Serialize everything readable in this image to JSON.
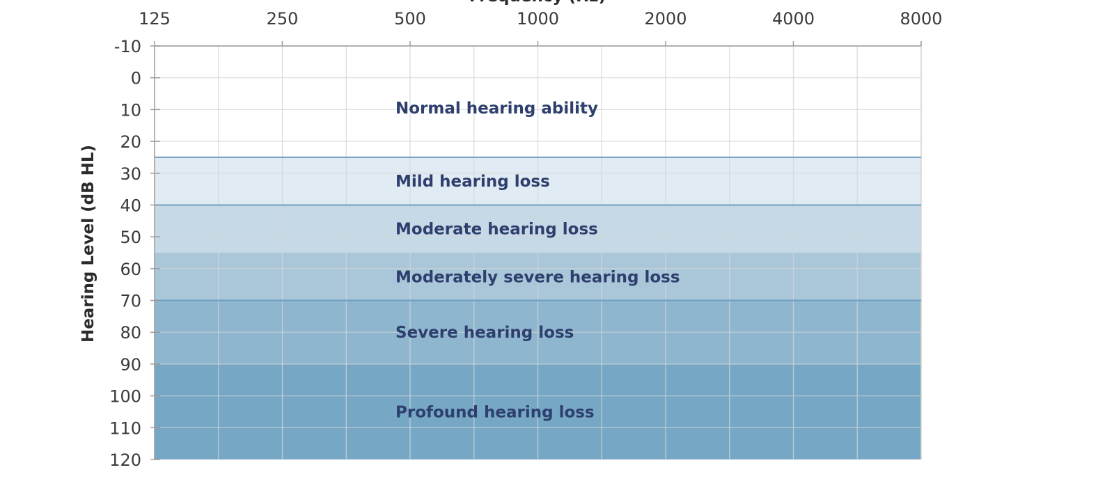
{
  "chart_data": {
    "type": "area",
    "title": "Frequency (Hz)",
    "xlabel": "Frequency (Hz)",
    "ylabel": "Hearing Level (dB HL)",
    "x_scale": "log2",
    "x_ticks": [
      125,
      250,
      500,
      1000,
      2000,
      4000,
      8000
    ],
    "x_tick_labels": [
      "125",
      "250",
      "500",
      "1000",
      "2000",
      "4000",
      "8000"
    ],
    "x_axis_position": "top",
    "xlim": [
      125,
      8000
    ],
    "ylim": [
      -10,
      120
    ],
    "y_inverted": true,
    "y_ticks": [
      -10,
      0,
      10,
      20,
      30,
      40,
      50,
      60,
      70,
      80,
      90,
      100,
      110,
      120
    ],
    "y_tick_labels": [
      "-10",
      "0",
      "10",
      "20",
      "30",
      "40",
      "50",
      "60",
      "70",
      "80",
      "90",
      "100",
      "110",
      "120"
    ],
    "grid": true,
    "bands": [
      {
        "label": "Normal hearing ability",
        "from": -10,
        "to": 25,
        "color": "#ffffff",
        "divider_below": true
      },
      {
        "label": "Mild hearing loss",
        "from": 25,
        "to": 40,
        "color": "#e1ebf3",
        "divider_below": true
      },
      {
        "label": "Moderate hearing loss",
        "from": 40,
        "to": 55,
        "color": "#c6d9e6",
        "divider_below": false
      },
      {
        "label": "Moderately severe hearing loss",
        "from": 55,
        "to": 70,
        "color": "#aac7da",
        "divider_below": true
      },
      {
        "label": "Severe hearing loss",
        "from": 70,
        "to": 90,
        "color": "#8fb6cf",
        "divider_below": false
      },
      {
        "label": "Profound hearing loss",
        "from": 90,
        "to": 120,
        "color": "#76a8c6",
        "divider_below": false
      }
    ],
    "colors": {
      "divider": "#6e9fc0",
      "label_text": "#2e3f6e",
      "grid": "#d4d4d4",
      "axis": "#9a9a9a"
    }
  }
}
